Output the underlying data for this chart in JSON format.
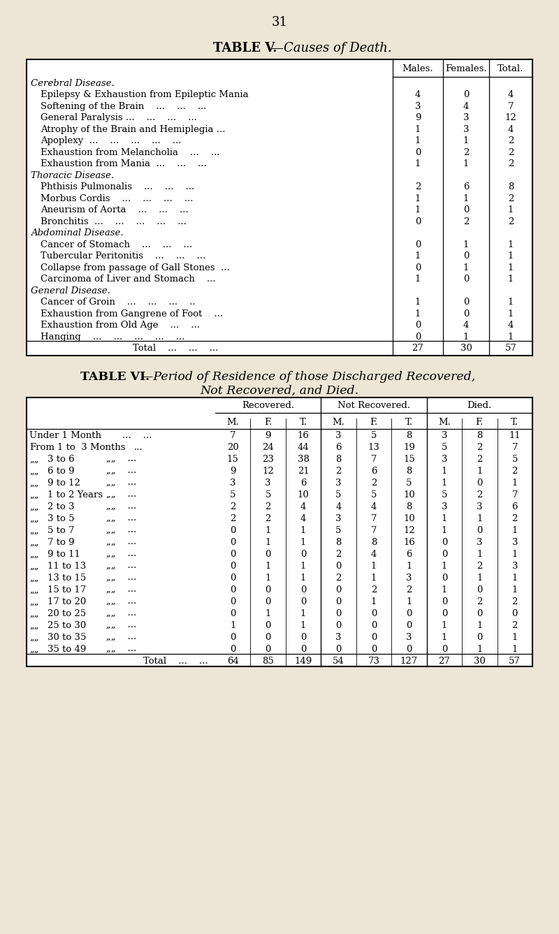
{
  "page_number": "31",
  "bg_color": "#ede5d5",
  "table5_title_bold": "TABLE V.",
  "table5_title_dash": "—",
  "table5_title_italic": "Causes of Death.",
  "table5_headers": [
    "Males.",
    "Females.",
    "Total."
  ],
  "table5_rows": [
    {
      "label": "Cerebral Disease.",
      "category": true,
      "males": null,
      "females": null,
      "total": null
    },
    {
      "label": "Epilepsy & Exhaustion from Epileptic Mania",
      "category": false,
      "males": "4",
      "females": "0",
      "total": "4"
    },
    {
      "label": "Softening of the Brain    ...    ...    ...",
      "category": false,
      "males": "3",
      "females": "4",
      "total": "7"
    },
    {
      "label": "General Paralysis ...    ...    ...    ...",
      "category": false,
      "males": "9",
      "females": "3",
      "total": "12"
    },
    {
      "label": "Atrophy of the Brain and Hemiplegia ...",
      "category": false,
      "males": "1",
      "females": "3",
      "total": "4"
    },
    {
      "label": "Apoplexy  ...    ...    ...    ...    ...",
      "category": false,
      "males": "1",
      "females": "1",
      "total": "2"
    },
    {
      "label": "Exhaustion from Melancholia    ...    ...",
      "category": false,
      "males": "0",
      "females": "2",
      "total": "2"
    },
    {
      "label": "Exhaustion from Mania  ...    ...    ...",
      "category": false,
      "males": "1",
      "females": "1",
      "total": "2"
    },
    {
      "label": "Thoracic Disease.",
      "category": true,
      "males": null,
      "females": null,
      "total": null
    },
    {
      "label": "Phthisis Pulmonalis    ...    ...    ...",
      "category": false,
      "males": "2",
      "females": "6",
      "total": "8"
    },
    {
      "label": "Morbus Cordis    ...    ...    ...    ...",
      "category": false,
      "males": "1",
      "females": "1",
      "total": "2"
    },
    {
      "label": "Aneurism of Aorta    ...    ...    ...",
      "category": false,
      "males": "1",
      "females": "0",
      "total": "1"
    },
    {
      "label": "Bronchitis  ...    ...    ...    ...    ...",
      "category": false,
      "males": "0",
      "females": "2",
      "total": "2"
    },
    {
      "label": "Abdominal Disease.",
      "category": true,
      "males": null,
      "females": null,
      "total": null
    },
    {
      "label": "Cancer of Stomach    ...    ...    ...",
      "category": false,
      "males": "0",
      "females": "1",
      "total": "1"
    },
    {
      "label": "Tubercular Peritonitis    ...    ...    ...",
      "category": false,
      "males": "1",
      "females": "0",
      "total": "1"
    },
    {
      "label": "Collapse from passage of Gall Stones  ...",
      "category": false,
      "males": "0",
      "females": "1",
      "total": "1"
    },
    {
      "label": "Carcinoma of Liver and Stomach    ...",
      "category": false,
      "males": "1",
      "females": "0",
      "total": "1"
    },
    {
      "label": "General Disease.",
      "category": true,
      "males": null,
      "females": null,
      "total": null
    },
    {
      "label": "Cancer of Groin    ...    ...    ...    ..",
      "category": false,
      "males": "1",
      "females": "0",
      "total": "1"
    },
    {
      "label": "Exhaustion from Gangrene of Foot    ...",
      "category": false,
      "males": "1",
      "females": "0",
      "total": "1"
    },
    {
      "label": "Exhaustion from Old Age    ...    ...",
      "category": false,
      "males": "0",
      "females": "4",
      "total": "4"
    },
    {
      "label": "Hanging    ...    ...    ...    ...    ...",
      "category": false,
      "males": "0",
      "females": "1",
      "total": "1"
    },
    {
      "label": "Total    ...    ...    ...",
      "category": false,
      "males": "27",
      "females": "30",
      "total": "57",
      "is_total": true
    }
  ],
  "table6_title1_bold": "TABLE VI.",
  "table6_title1_italic": "—Period of Residence of those Discharged Recovered,",
  "table6_title2_italic": "Not Recovered, and Died.",
  "table6_col_groups": [
    "Recovered.",
    "Not Recovered.",
    "Died."
  ],
  "table6_sub_headers": [
    "M.",
    "F.",
    "T.",
    "M.",
    "F.",
    "T.",
    "M.",
    "F.",
    "T."
  ],
  "table6_rows": [
    {
      "label1": "Under 1 Month",
      "label2": "...    ...",
      "prefix": "under",
      "r_m": "7",
      "r_f": "9",
      "r_t": "16",
      "nr_m": "3",
      "nr_f": "5",
      "nr_t": "8",
      "d_m": "3",
      "d_f": "8",
      "d_t": "11"
    },
    {
      "label1": "1 to  3 Months",
      "label2": "...",
      "prefix": "From",
      "r_m": "20",
      "r_f": "24",
      "r_t": "44",
      "nr_m": "6",
      "nr_f": "13",
      "nr_t": "19",
      "d_m": "5",
      "d_f": "2",
      "d_t": "7"
    },
    {
      "label1": "3 to 6",
      "label2": "„„    ...",
      "prefix": "„„",
      "r_m": "15",
      "r_f": "23",
      "r_t": "38",
      "nr_m": "8",
      "nr_f": "7",
      "nr_t": "15",
      "d_m": "3",
      "d_f": "2",
      "d_t": "5"
    },
    {
      "label1": "6 to 9",
      "label2": "„„    ...",
      "prefix": "„„",
      "r_m": "9",
      "r_f": "12",
      "r_t": "21",
      "nr_m": "2",
      "nr_f": "6",
      "nr_t": "8",
      "d_m": "1",
      "d_f": "1",
      "d_t": "2"
    },
    {
      "label1": "9 to 12",
      "label2": "„„    ...",
      "prefix": "„„",
      "r_m": "3",
      "r_f": "3",
      "r_t": "6",
      "nr_m": "3",
      "nr_f": "2",
      "nr_t": "5",
      "d_m": "1",
      "d_f": "0",
      "d_t": "1"
    },
    {
      "label1": "1 to 2 Years",
      "label2": "...",
      "prefix": "„„",
      "r_m": "5",
      "r_f": "5",
      "r_t": "10",
      "nr_m": "5",
      "nr_f": "5",
      "nr_t": "10",
      "d_m": "5",
      "d_f": "2",
      "d_t": "7"
    },
    {
      "label1": "2 to 3",
      "label2": "„„    ...",
      "prefix": "„„",
      "r_m": "2",
      "r_f": "2",
      "r_t": "4",
      "nr_m": "4",
      "nr_f": "4",
      "nr_t": "8",
      "d_m": "3",
      "d_f": "3",
      "d_t": "6"
    },
    {
      "label1": "3 to 5",
      "label2": "„„    ...",
      "prefix": "„„",
      "r_m": "2",
      "r_f": "2",
      "r_t": "4",
      "nr_m": "3",
      "nr_f": "7",
      "nr_t": "10",
      "d_m": "1",
      "d_f": "1",
      "d_t": "2"
    },
    {
      "label1": "5 to 7",
      "label2": "„„    ...",
      "prefix": "„„",
      "r_m": "0",
      "r_f": "1",
      "r_t": "1",
      "nr_m": "5",
      "nr_f": "7",
      "nr_t": "12",
      "d_m": "1",
      "d_f": "0",
      "d_t": "1"
    },
    {
      "label1": "7 to 9",
      "label2": "„„    ...",
      "prefix": "„„",
      "r_m": "0",
      "r_f": "1",
      "r_t": "1",
      "nr_m": "8",
      "nr_f": "8",
      "nr_t": "16",
      "d_m": "0",
      "d_f": "3",
      "d_t": "3"
    },
    {
      "label1": "9 to 11",
      "label2": "„„    ...",
      "prefix": "„„",
      "r_m": "0",
      "r_f": "0",
      "r_t": "0",
      "nr_m": "2",
      "nr_f": "4",
      "nr_t": "6",
      "d_m": "0",
      "d_f": "1",
      "d_t": "1"
    },
    {
      "label1": "11 to 13",
      "label2": "„„    ...",
      "prefix": "„„",
      "r_m": "0",
      "r_f": "1",
      "r_t": "1",
      "nr_m": "0",
      "nr_f": "1",
      "nr_t": "1",
      "d_m": "1",
      "d_f": "2",
      "d_t": "3"
    },
    {
      "label1": "13 to 15",
      "label2": "„„    ...",
      "prefix": "„„",
      "r_m": "0",
      "r_f": "1",
      "r_t": "1",
      "nr_m": "2",
      "nr_f": "1",
      "nr_t": "3",
      "d_m": "0",
      "d_f": "1",
      "d_t": "1"
    },
    {
      "label1": "15 to 17",
      "label2": "„„    ...",
      "prefix": "„„",
      "r_m": "0",
      "r_f": "0",
      "r_t": "0",
      "nr_m": "0",
      "nr_f": "2",
      "nr_t": "2",
      "d_m": "1",
      "d_f": "0",
      "d_t": "1"
    },
    {
      "label1": "17 to 20",
      "label2": "„„    ...",
      "prefix": "„„",
      "r_m": "0",
      "r_f": "0",
      "r_t": "0",
      "nr_m": "0",
      "nr_f": "1",
      "nr_t": "1",
      "d_m": "0",
      "d_f": "2",
      "d_t": "2"
    },
    {
      "label1": "20 to 25",
      "label2": "„„    ...",
      "prefix": "„„",
      "r_m": "0",
      "r_f": "1",
      "r_t": "1",
      "nr_m": "0",
      "nr_f": "0",
      "nr_t": "0",
      "d_m": "0",
      "d_f": "0",
      "d_t": "0"
    },
    {
      "label1": "25 to 30",
      "label2": "„„    ...",
      "prefix": "„„",
      "r_m": "1",
      "r_f": "0",
      "r_t": "1",
      "nr_m": "0",
      "nr_f": "0",
      "nr_t": "0",
      "d_m": "1",
      "d_f": "1",
      "d_t": "2"
    },
    {
      "label1": "30 to 35",
      "label2": "„„    ...",
      "prefix": "„„",
      "r_m": "0",
      "r_f": "0",
      "r_t": "0",
      "nr_m": "3",
      "nr_f": "0",
      "nr_t": "3",
      "d_m": "1",
      "d_f": "0",
      "d_t": "1"
    },
    {
      "label1": "35 to 49",
      "label2": "„„    ...",
      "prefix": "„„",
      "r_m": "0",
      "r_f": "0",
      "r_t": "0",
      "nr_m": "0",
      "nr_f": "0",
      "nr_t": "0",
      "d_m": "0",
      "d_f": "1",
      "d_t": "1"
    },
    {
      "label1": "Total    ...    ...",
      "label2": "",
      "prefix": "total",
      "r_m": "64",
      "r_f": "85",
      "r_t": "149",
      "nr_m": "54",
      "nr_f": "73",
      "nr_t": "127",
      "d_m": "27",
      "d_f": "30",
      "d_t": "57",
      "is_total": true
    }
  ]
}
